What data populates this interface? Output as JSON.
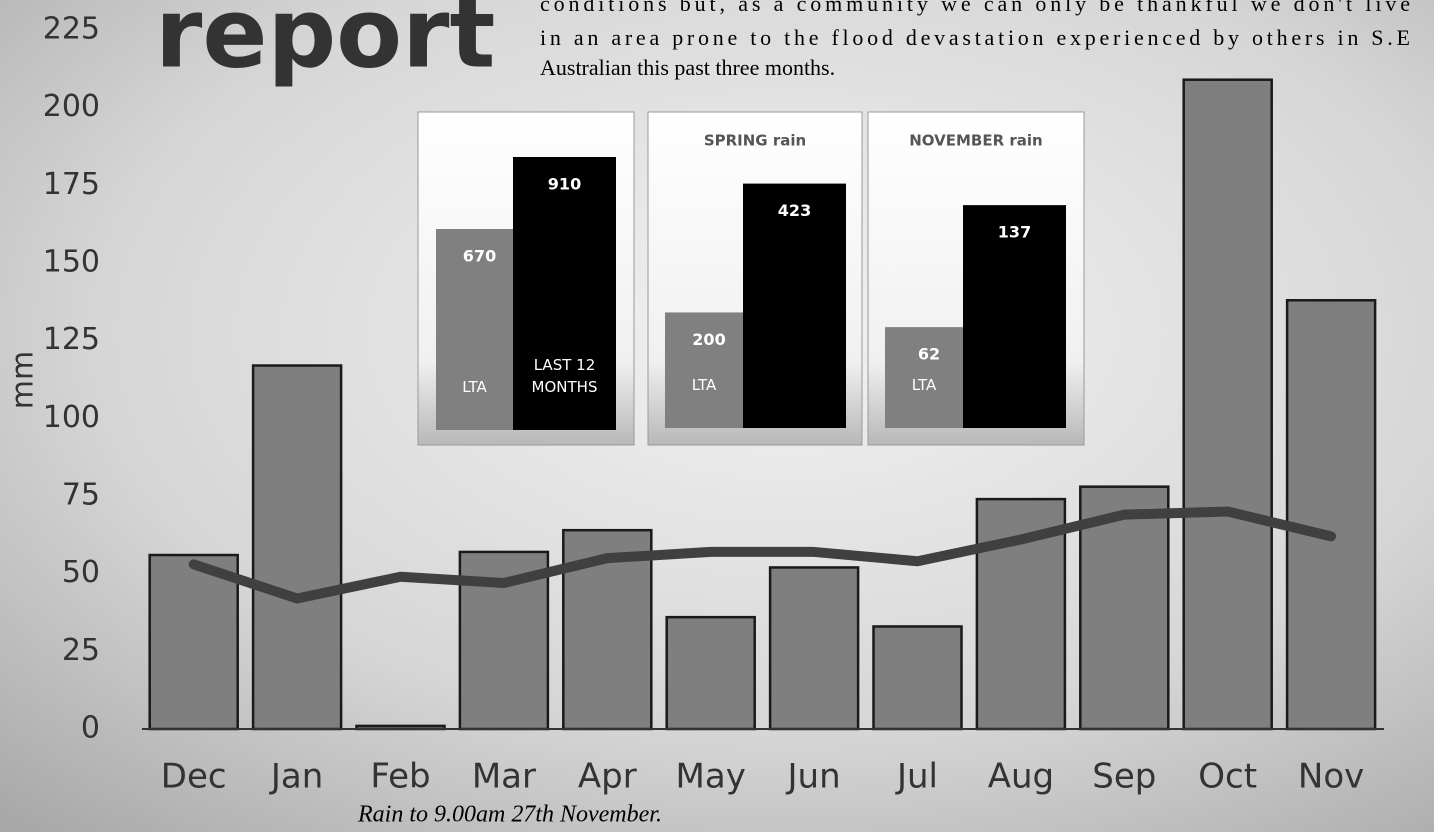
{
  "header": {
    "title": "report",
    "paragraph_lines": [
      "conditions but, as a community we can only be thankful we don't live",
      "in an area prone to the flood devastation experienced by others in S.E",
      "Australian this past three months."
    ]
  },
  "caption": "Rain to 9.00am 27th November.",
  "chart_data": [
    {
      "type": "combo",
      "y_label": "mm",
      "categories": [
        "Dec",
        "Jan",
        "Feb",
        "Mar",
        "Apr",
        "May",
        "Jun",
        "Jul",
        "Aug",
        "Sep",
        "Oct",
        "Nov"
      ],
      "series": [
        {
          "type": "bar",
          "color": "#7f7f7f",
          "values": [
            56,
            117,
            1,
            57,
            64,
            36,
            52,
            33,
            74,
            78,
            209,
            138
          ]
        },
        {
          "type": "line",
          "color": "#404040",
          "values": [
            53,
            42,
            49,
            47,
            55,
            57,
            57,
            54,
            61,
            69,
            70,
            62
          ]
        }
      ],
      "ylim": [
        0,
        225
      ],
      "yticks": [
        0,
        25,
        50,
        75,
        100,
        125,
        150,
        175,
        200,
        225
      ]
    },
    {
      "type": "bar",
      "categories": [
        "LTA",
        "LAST 12 MONTHS"
      ],
      "colors": [
        "#808080",
        "#000000"
      ],
      "values": [
        670,
        910
      ],
      "ylim": [
        0,
        1000
      ]
    },
    {
      "type": "bar",
      "title": "SPRING rain",
      "categories": [
        "LTA",
        null
      ],
      "colors": [
        "#808080",
        "#000000"
      ],
      "values": [
        200,
        423
      ],
      "ylim": [
        0,
        450
      ]
    },
    {
      "type": "bar",
      "title": "NOVEMBER rain",
      "categories": [
        "LTA",
        null
      ],
      "colors": [
        "#808080",
        "#000000"
      ],
      "values": [
        62,
        137
      ],
      "ylim": [
        0,
        150
      ]
    }
  ]
}
